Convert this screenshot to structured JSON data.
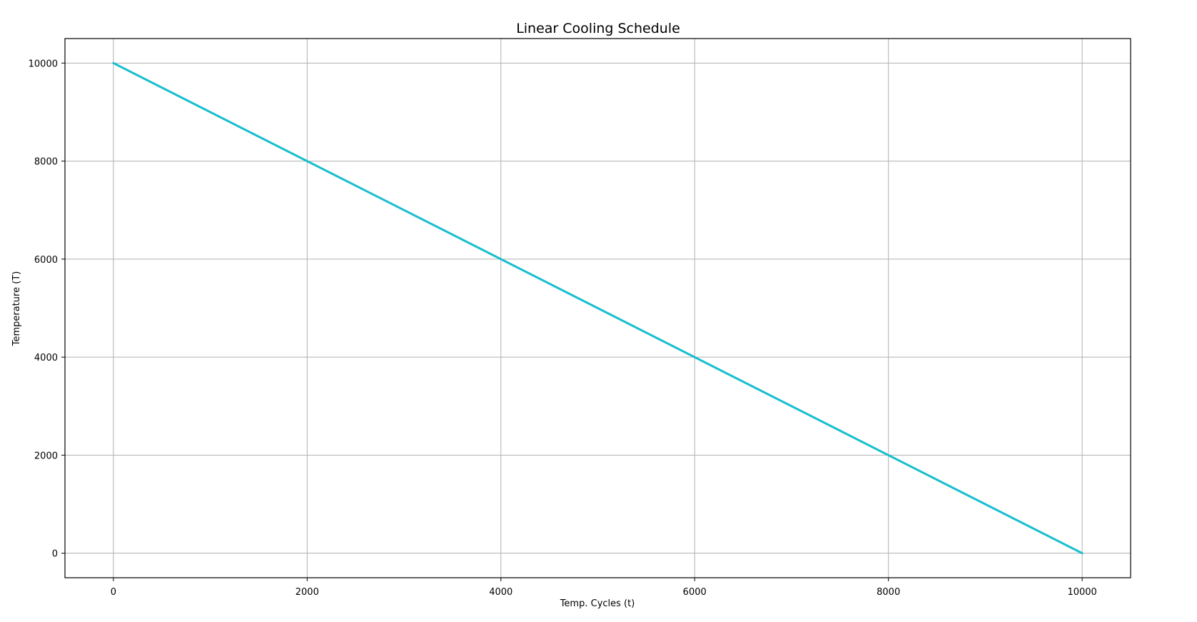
{
  "chart_data": {
    "type": "line",
    "title": "Linear Cooling Schedule",
    "xlabel": "Temp. Cycles (t)",
    "ylabel": "Temperature (T)",
    "x": [
      0,
      10000
    ],
    "series": [
      {
        "values": [
          10000,
          0
        ],
        "color": "#17becf"
      }
    ],
    "xlim": [
      -500,
      10500
    ],
    "ylim": [
      -500,
      10500
    ],
    "xticks": [
      0,
      2000,
      4000,
      6000,
      8000,
      10000
    ],
    "yticks": [
      0,
      2000,
      4000,
      6000,
      8000,
      10000
    ],
    "grid": true,
    "grid_color": "#b0b0b0"
  }
}
